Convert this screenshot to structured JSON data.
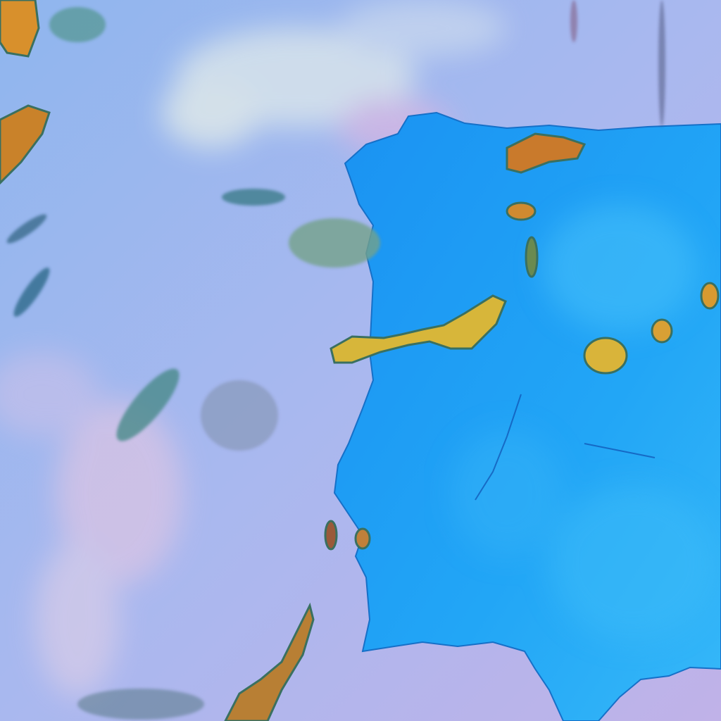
{
  "image": {
    "kind": "false-color satellite image",
    "colors": {
      "ocean": "#a7b9ef",
      "ocean_pink": "#c9b6e6",
      "land": "#1aa0f5",
      "land_light": "#3fc0fa",
      "cloud_high": "#e2b93a",
      "cloud_core": "#e08a2a",
      "cloud_low": "#d9e6e8",
      "cloud_edge": "#2a6a7a"
    }
  }
}
